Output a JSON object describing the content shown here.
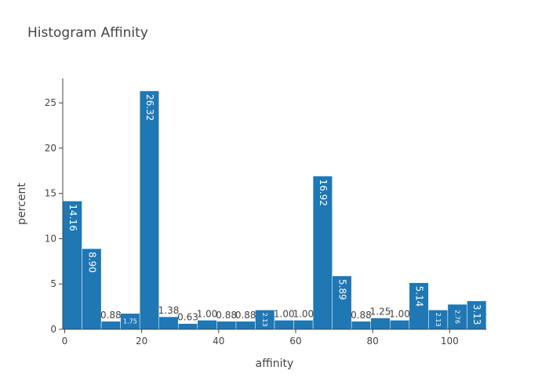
{
  "chart_data": {
    "type": "bar",
    "title": "Histogram Affinity",
    "xlabel": "affinity",
    "ylabel": "percent",
    "x_range": [
      -0.5,
      109.5
    ],
    "ylim": [
      0,
      27.7
    ],
    "x_ticks": [
      0,
      20,
      40,
      60,
      80,
      100
    ],
    "y_ticks": [
      0,
      5,
      10,
      15,
      20,
      25
    ],
    "bin_width": 5,
    "bar_color": "#1f77b4",
    "bins": [
      {
        "start": -0.5,
        "end": 4.5,
        "value": 14.16,
        "label": "14.16"
      },
      {
        "start": 4.5,
        "end": 9.5,
        "value": 8.9,
        "label": "8.90"
      },
      {
        "start": 9.5,
        "end": 14.5,
        "value": 0.88,
        "label": "0.88"
      },
      {
        "start": 14.5,
        "end": 19.5,
        "value": 1.75,
        "label": "1.75"
      },
      {
        "start": 19.5,
        "end": 24.5,
        "value": 26.32,
        "label": "26.32"
      },
      {
        "start": 24.5,
        "end": 29.5,
        "value": 1.38,
        "label": "1.38"
      },
      {
        "start": 29.5,
        "end": 34.5,
        "value": 0.63,
        "label": "0.63"
      },
      {
        "start": 34.5,
        "end": 39.5,
        "value": 1.0,
        "label": "1.00"
      },
      {
        "start": 39.5,
        "end": 44.5,
        "value": 0.88,
        "label": "0.88"
      },
      {
        "start": 44.5,
        "end": 49.5,
        "value": 0.88,
        "label": "0.88"
      },
      {
        "start": 49.5,
        "end": 54.5,
        "value": 2.13,
        "label": "2.13"
      },
      {
        "start": 54.5,
        "end": 59.5,
        "value": 1.0,
        "label": "1.00"
      },
      {
        "start": 59.5,
        "end": 64.5,
        "value": 1.0,
        "label": "1.00"
      },
      {
        "start": 64.5,
        "end": 69.5,
        "value": 16.92,
        "label": "16.92"
      },
      {
        "start": 69.5,
        "end": 74.5,
        "value": 5.89,
        "label": "5.89"
      },
      {
        "start": 74.5,
        "end": 79.5,
        "value": 0.88,
        "label": "0.88"
      },
      {
        "start": 79.5,
        "end": 84.5,
        "value": 1.25,
        "label": "1.25"
      },
      {
        "start": 84.5,
        "end": 89.5,
        "value": 1.0,
        "label": "1.00"
      },
      {
        "start": 89.5,
        "end": 94.5,
        "value": 5.14,
        "label": "5.14"
      },
      {
        "start": 94.5,
        "end": 99.5,
        "value": 2.13,
        "label": "2.13"
      },
      {
        "start": 99.5,
        "end": 104.5,
        "value": 2.76,
        "label": "2.76"
      },
      {
        "start": 104.5,
        "end": 109.5,
        "value": 3.13,
        "label": "3.13"
      }
    ]
  }
}
